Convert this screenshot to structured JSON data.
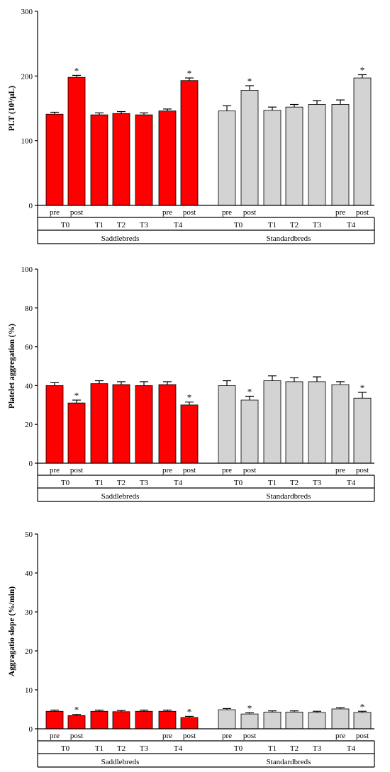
{
  "colors": {
    "saddlebreds_bar": "#ff0000",
    "standardbreds_bar": "#d3d3d3",
    "axis": "#000000"
  },
  "chart_data": [
    {
      "type": "bar",
      "ylabel": "PLT (10³/μL)",
      "ylim": [
        0,
        300
      ],
      "yticks": [
        0,
        100,
        200,
        300
      ],
      "groups": [
        {
          "name": "Saddlebreds",
          "color": "#ff0000",
          "bars": [
            {
              "label": "pre",
              "time": "T0",
              "value": 141,
              "error": 3,
              "sig": false
            },
            {
              "label": "post",
              "time": "T0",
              "value": 198,
              "error": 3,
              "sig": true
            },
            {
              "label": "",
              "time": "T1",
              "value": 140,
              "error": 3,
              "sig": false
            },
            {
              "label": "",
              "time": "T2",
              "value": 142,
              "error": 3,
              "sig": false
            },
            {
              "label": "",
              "time": "T3",
              "value": 140,
              "error": 3,
              "sig": false
            },
            {
              "label": "pre",
              "time": "T4",
              "value": 146,
              "error": 3,
              "sig": false
            },
            {
              "label": "post",
              "time": "T4",
              "value": 193,
              "error": 4,
              "sig": true
            }
          ]
        },
        {
          "name": "Standardbreds",
          "color": "#d3d3d3",
          "bars": [
            {
              "label": "pre",
              "time": "T0",
              "value": 146,
              "error": 8,
              "sig": false
            },
            {
              "label": "post",
              "time": "T0",
              "value": 178,
              "error": 7,
              "sig": true
            },
            {
              "label": "",
              "time": "T1",
              "value": 147,
              "error": 5,
              "sig": false
            },
            {
              "label": "",
              "time": "T2",
              "value": 152,
              "error": 4,
              "sig": false
            },
            {
              "label": "",
              "time": "T3",
              "value": 156,
              "error": 6,
              "sig": false
            },
            {
              "label": "pre",
              "time": "T4",
              "value": 156,
              "error": 7,
              "sig": false
            },
            {
              "label": "post",
              "time": "T4",
              "value": 197,
              "error": 5,
              "sig": true
            }
          ]
        }
      ],
      "time_labels": [
        "T0",
        "T1",
        "T2",
        "T3",
        "T4"
      ]
    },
    {
      "type": "bar",
      "ylabel": "Platelet aggregation (%)",
      "ylim": [
        0,
        100
      ],
      "yticks": [
        0,
        20,
        40,
        60,
        80,
        100
      ],
      "groups": [
        {
          "name": "Saddlebreds",
          "color": "#ff0000",
          "bars": [
            {
              "label": "pre",
              "time": "T0",
              "value": 40,
              "error": 1.5,
              "sig": false
            },
            {
              "label": "post",
              "time": "T0",
              "value": 31,
              "error": 1.5,
              "sig": true
            },
            {
              "label": "",
              "time": "T1",
              "value": 41,
              "error": 1.5,
              "sig": false
            },
            {
              "label": "",
              "time": "T2",
              "value": 40.5,
              "error": 1.5,
              "sig": false
            },
            {
              "label": "",
              "time": "T3",
              "value": 40,
              "error": 2,
              "sig": false
            },
            {
              "label": "pre",
              "time": "T4",
              "value": 40.5,
              "error": 1.5,
              "sig": false
            },
            {
              "label": "post",
              "time": "T4",
              "value": 30,
              "error": 1.5,
              "sig": true
            }
          ]
        },
        {
          "name": "Standardbreds",
          "color": "#d3d3d3",
          "bars": [
            {
              "label": "pre",
              "time": "T0",
              "value": 40,
              "error": 2.5,
              "sig": false
            },
            {
              "label": "post",
              "time": "T0",
              "value": 32.5,
              "error": 2,
              "sig": true
            },
            {
              "label": "",
              "time": "T1",
              "value": 42.5,
              "error": 2.5,
              "sig": false
            },
            {
              "label": "",
              "time": "T2",
              "value": 42,
              "error": 2,
              "sig": false
            },
            {
              "label": "",
              "time": "T3",
              "value": 42,
              "error": 2.5,
              "sig": false
            },
            {
              "label": "pre",
              "time": "T4",
              "value": 40.5,
              "error": 1.5,
              "sig": false
            },
            {
              "label": "post",
              "time": "T4",
              "value": 33.5,
              "error": 3,
              "sig": true
            }
          ]
        }
      ],
      "time_labels": [
        "T0",
        "T1",
        "T2",
        "T3",
        "T4"
      ]
    },
    {
      "type": "bar",
      "ylabel": "Aggragatio slope (%/min)",
      "ylim": [
        0,
        50
      ],
      "yticks": [
        0,
        10,
        20,
        30,
        40,
        50
      ],
      "groups": [
        {
          "name": "Saddlebreds",
          "color": "#ff0000",
          "bars": [
            {
              "label": "pre",
              "time": "T0",
              "value": 4.5,
              "error": 0.3,
              "sig": false
            },
            {
              "label": "post",
              "time": "T0",
              "value": 3.4,
              "error": 0.3,
              "sig": true
            },
            {
              "label": "",
              "time": "T1",
              "value": 4.5,
              "error": 0.3,
              "sig": false
            },
            {
              "label": "",
              "time": "T2",
              "value": 4.4,
              "error": 0.3,
              "sig": false
            },
            {
              "label": "",
              "time": "T3",
              "value": 4.5,
              "error": 0.3,
              "sig": false
            },
            {
              "label": "pre",
              "time": "T4",
              "value": 4.5,
              "error": 0.3,
              "sig": false
            },
            {
              "label": "post",
              "time": "T4",
              "value": 2.9,
              "error": 0.3,
              "sig": true
            }
          ]
        },
        {
          "name": "Standardbreds",
          "color": "#d3d3d3",
          "bars": [
            {
              "label": "pre",
              "time": "T0",
              "value": 4.9,
              "error": 0.3,
              "sig": false
            },
            {
              "label": "post",
              "time": "T0",
              "value": 3.8,
              "error": 0.3,
              "sig": true
            },
            {
              "label": "",
              "time": "T1",
              "value": 4.3,
              "error": 0.3,
              "sig": false
            },
            {
              "label": "",
              "time": "T2",
              "value": 4.3,
              "error": 0.3,
              "sig": false
            },
            {
              "label": "",
              "time": "T3",
              "value": 4.2,
              "error": 0.3,
              "sig": false
            },
            {
              "label": "pre",
              "time": "T4",
              "value": 5.1,
              "error": 0.3,
              "sig": false
            },
            {
              "label": "post",
              "time": "T4",
              "value": 4.2,
              "error": 0.3,
              "sig": true
            }
          ]
        }
      ],
      "time_labels": [
        "T0",
        "T1",
        "T2",
        "T3",
        "T4"
      ]
    }
  ]
}
